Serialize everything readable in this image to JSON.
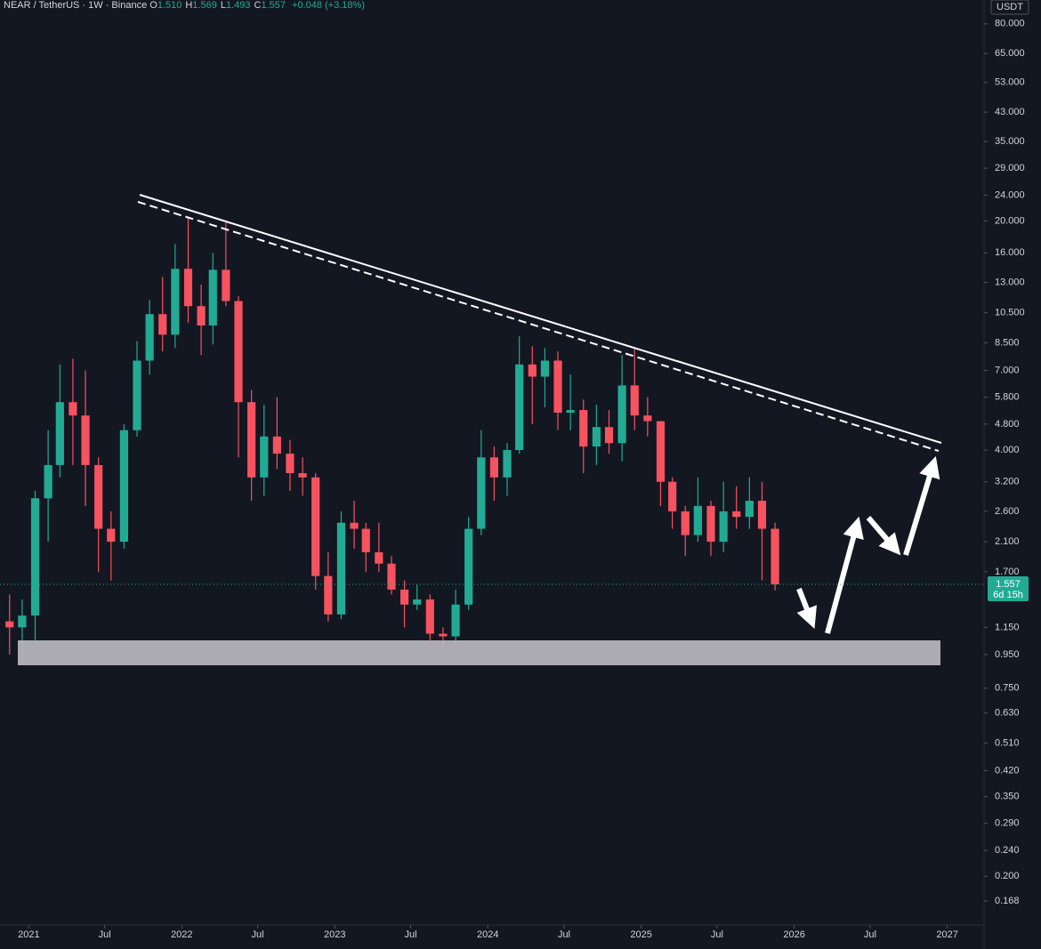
{
  "chart_data": {
    "type": "candlestick",
    "title": "NEAR / TetherUS · 1W · Binance",
    "ohlc_labels": [
      {
        "key": "O",
        "value": "1.510"
      },
      {
        "key": "H",
        "value": "1.569"
      },
      {
        "key": "L",
        "value": "1.493"
      },
      {
        "key": "C",
        "value": "1.557"
      }
    ],
    "change": "+0.048 (+3.18%)",
    "currency": "USDT",
    "countdown": "6d 15h",
    "log_scale": true,
    "up_color": "#22ab94",
    "down_color": "#f7525f",
    "x": [
      "2020-11",
      "2020-12",
      "2021-01",
      "2021-02",
      "2021-03",
      "2021-04",
      "2021-05",
      "2021-06",
      "2021-07",
      "2021-08",
      "2021-09",
      "2021-10",
      "2021-11",
      "2021-12",
      "2022-01",
      "2022-02",
      "2022-03",
      "2022-04",
      "2022-05",
      "2022-06",
      "2022-07",
      "2022-08",
      "2022-09",
      "2022-10",
      "2022-11",
      "2022-12",
      "2023-01",
      "2023-02",
      "2023-03",
      "2023-04",
      "2023-05",
      "2023-06",
      "2023-07",
      "2023-08",
      "2023-09",
      "2023-10",
      "2023-11",
      "2023-12",
      "2024-01",
      "2024-02",
      "2024-03",
      "2024-04",
      "2024-05",
      "2024-06",
      "2024-07",
      "2024-08",
      "2024-09",
      "2024-10",
      "2024-11",
      "2024-12",
      "2025-01",
      "2025-02",
      "2025-03",
      "2025-04",
      "2025-05",
      "2025-06",
      "2025-07",
      "2025-08",
      "2025-09",
      "2025-10",
      "2025-11"
    ],
    "open": [
      1.2,
      1.15,
      1.25,
      2.85,
      3.6,
      5.6,
      5.1,
      3.6,
      2.3,
      2.1,
      4.6,
      7.5,
      10.4,
      9.0,
      14.3,
      11.0,
      9.6,
      14.2,
      11.4,
      5.6,
      3.3,
      4.4,
      3.9,
      3.4,
      3.3,
      1.65,
      1.26,
      2.4,
      2.3,
      1.95,
      1.8,
      1.5,
      1.35,
      1.4,
      1.1,
      1.08,
      1.35,
      2.3,
      3.8,
      3.3,
      4.0,
      7.3,
      6.7,
      7.5,
      5.2,
      5.3,
      4.1,
      4.7,
      4.2,
      6.3,
      5.1,
      4.9,
      3.2,
      2.6,
      2.2,
      2.7,
      2.1,
      2.6,
      2.5,
      2.8,
      2.3
    ],
    "high": [
      1.45,
      1.4,
      3.0,
      4.6,
      7.3,
      7.6,
      7.0,
      3.8,
      2.6,
      4.8,
      8.6,
      11.5,
      13.5,
      17.0,
      20.5,
      12.8,
      16.0,
      19.8,
      11.8,
      6.1,
      5.5,
      5.8,
      4.3,
      3.8,
      3.4,
      1.95,
      2.6,
      2.8,
      2.4,
      2.4,
      1.9,
      1.6,
      1.55,
      1.45,
      1.15,
      1.5,
      2.5,
      4.6,
      4.1,
      4.2,
      8.9,
      8.3,
      8.2,
      8.0,
      6.8,
      5.7,
      5.5,
      5.3,
      7.8,
      8.2,
      5.8,
      4.9,
      3.3,
      2.7,
      3.3,
      2.8,
      3.2,
      3.1,
      3.3,
      3.2,
      2.4
    ],
    "low": [
      0.95,
      0.9,
      1.05,
      2.1,
      3.3,
      3.6,
      2.7,
      1.7,
      1.6,
      2.0,
      4.4,
      6.8,
      8.0,
      8.2,
      9.8,
      7.8,
      8.4,
      11.0,
      3.8,
      2.8,
      2.9,
      3.5,
      3.0,
      2.9,
      1.5,
      1.2,
      1.22,
      2.0,
      1.7,
      1.7,
      1.45,
      1.15,
      1.3,
      1.05,
      1.0,
      1.02,
      1.3,
      2.2,
      2.8,
      2.9,
      3.9,
      4.8,
      5.4,
      4.6,
      4.6,
      3.4,
      3.6,
      3.9,
      3.7,
      4.6,
      4.4,
      2.7,
      2.3,
      1.9,
      2.1,
      1.9,
      1.95,
      2.3,
      2.3,
      1.6,
      1.49
    ],
    "close": [
      1.15,
      1.25,
      2.85,
      3.6,
      5.6,
      5.1,
      3.6,
      2.3,
      2.1,
      4.6,
      7.5,
      10.4,
      9.0,
      14.3,
      11.0,
      9.6,
      14.2,
      11.4,
      5.6,
      3.3,
      4.4,
      3.9,
      3.4,
      3.3,
      1.65,
      1.26,
      2.4,
      2.3,
      1.95,
      1.8,
      1.5,
      1.35,
      1.4,
      1.1,
      1.08,
      1.35,
      2.3,
      3.8,
      3.3,
      4.0,
      7.3,
      6.7,
      7.5,
      5.2,
      5.3,
      4.1,
      4.7,
      4.2,
      6.3,
      5.1,
      4.9,
      3.2,
      2.6,
      2.2,
      2.7,
      2.1,
      2.6,
      2.5,
      2.8,
      2.3,
      1.557
    ],
    "xlim": [
      "2020-10",
      "2027-04"
    ],
    "xticks": [
      {
        "value": "2021-01",
        "label": "2021"
      },
      {
        "value": "2021-07",
        "label": "Jul"
      },
      {
        "value": "2022-01",
        "label": "2022"
      },
      {
        "value": "2022-07",
        "label": "Jul"
      },
      {
        "value": "2023-01",
        "label": "2023"
      },
      {
        "value": "2023-07",
        "label": "Jul"
      },
      {
        "value": "2024-01",
        "label": "2024"
      },
      {
        "value": "2024-07",
        "label": "Jul"
      },
      {
        "value": "2025-01",
        "label": "2025"
      },
      {
        "value": "2025-07",
        "label": "Jul"
      },
      {
        "value": "2026-01",
        "label": "2026"
      },
      {
        "value": "2026-07",
        "label": "Jul"
      },
      {
        "value": "2027-01",
        "label": "2027"
      }
    ],
    "ylim": [
      0.142,
      94.6
    ],
    "yticks": [
      {
        "value": 80,
        "label": "80.000"
      },
      {
        "value": 65,
        "label": "65.000"
      },
      {
        "value": 53,
        "label": "53.000"
      },
      {
        "value": 43,
        "label": "43.000"
      },
      {
        "value": 35,
        "label": "35.000"
      },
      {
        "value": 29,
        "label": "29.000"
      },
      {
        "value": 24,
        "label": "24.000"
      },
      {
        "value": 20,
        "label": "20.000"
      },
      {
        "value": 16,
        "label": "16.000"
      },
      {
        "value": 13,
        "label": "13.000"
      },
      {
        "value": 10.5,
        "label": "10.500"
      },
      {
        "value": 8.5,
        "label": "8.500"
      },
      {
        "value": 7,
        "label": "7.000"
      },
      {
        "value": 5.8,
        "label": "5.800"
      },
      {
        "value": 4.8,
        "label": "4.800"
      },
      {
        "value": 4,
        "label": "4.000"
      },
      {
        "value": 3.2,
        "label": "3.200"
      },
      {
        "value": 2.6,
        "label": "2.600"
      },
      {
        "value": 2.1,
        "label": "2.100"
      },
      {
        "value": 1.7,
        "label": "1.700"
      },
      {
        "value": 1.15,
        "label": "1.150"
      },
      {
        "value": 0.95,
        "label": "0.950"
      },
      {
        "value": 0.75,
        "label": "0.750"
      },
      {
        "value": 0.63,
        "label": "0.630"
      },
      {
        "value": 0.51,
        "label": "0.510"
      },
      {
        "value": 0.42,
        "label": "0.420"
      },
      {
        "value": 0.35,
        "label": "0.350"
      },
      {
        "value": 0.29,
        "label": "0.290"
      },
      {
        "value": 0.24,
        "label": "0.240"
      },
      {
        "value": 0.2,
        "label": "0.200"
      },
      {
        "value": 0.168,
        "label": "0.168"
      }
    ]
  }
}
